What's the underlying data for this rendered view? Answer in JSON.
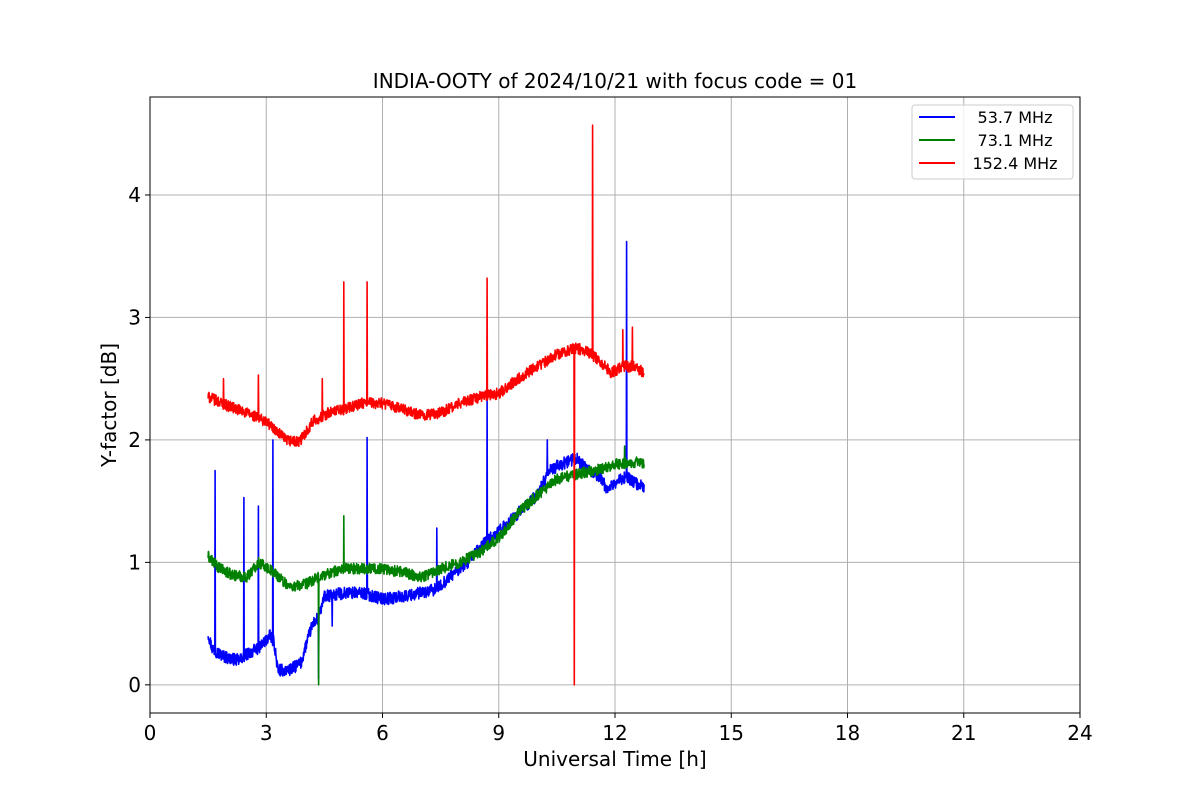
{
  "chart_data": {
    "type": "line",
    "title": "INDIA-OOTY of 2024/10/21 with focus code = 01",
    "xlabel": "Universal Time [h]",
    "ylabel": "Y-factor [dB]",
    "xlim": [
      0,
      24
    ],
    "ylim": [
      -0.23,
      4.8
    ],
    "xticks": [
      0,
      3,
      6,
      9,
      12,
      15,
      18,
      21,
      24
    ],
    "yticks": [
      0,
      1,
      2,
      3,
      4
    ],
    "grid": true,
    "legend_position": "top-right",
    "series": [
      {
        "name": "53.7 MHz",
        "color": "#0000ff",
        "noise": 0.05,
        "x": [
          1.5,
          1.6,
          1.8,
          2.0,
          2.3,
          2.5,
          2.8,
          3.1,
          3.2,
          3.3,
          3.6,
          3.9,
          4.0,
          4.2,
          4.35,
          4.5,
          5.0,
          5.5,
          6.0,
          6.5,
          7.0,
          7.4,
          7.8,
          8.2,
          8.6,
          9.0,
          9.5,
          10.0,
          10.3,
          10.6,
          11.0,
          11.3,
          11.6,
          11.8,
          12.0,
          12.3,
          12.5,
          12.75
        ],
        "y": [
          0.42,
          0.3,
          0.25,
          0.22,
          0.2,
          0.25,
          0.3,
          0.4,
          0.35,
          0.12,
          0.12,
          0.18,
          0.3,
          0.5,
          0.55,
          0.72,
          0.75,
          0.75,
          0.7,
          0.72,
          0.75,
          0.78,
          0.9,
          1.0,
          1.15,
          1.25,
          1.4,
          1.55,
          1.75,
          1.8,
          1.85,
          1.75,
          1.7,
          1.6,
          1.65,
          1.7,
          1.65,
          1.62
        ],
        "spikes": [
          [
            1.68,
            1.75
          ],
          [
            2.42,
            1.53
          ],
          [
            2.8,
            1.46
          ],
          [
            3.17,
            2.0
          ],
          [
            4.35,
            0.05
          ],
          [
            4.7,
            0.48
          ],
          [
            5.6,
            2.02
          ],
          [
            7.4,
            1.28
          ],
          [
            8.7,
            2.35
          ],
          [
            10.25,
            2.0
          ],
          [
            12.3,
            3.62
          ]
        ]
      },
      {
        "name": "73.1 MHz",
        "color": "#008000",
        "noise": 0.045,
        "x": [
          1.5,
          1.8,
          2.1,
          2.5,
          2.8,
          3.2,
          3.6,
          4.0,
          4.5,
          5.0,
          5.5,
          6.0,
          6.5,
          7.0,
          7.5,
          8.0,
          8.5,
          9.0,
          9.5,
          10.0,
          10.5,
          11.0,
          11.5,
          12.0,
          12.5,
          12.75
        ],
        "y": [
          1.05,
          0.95,
          0.9,
          0.88,
          1.0,
          0.92,
          0.8,
          0.82,
          0.9,
          0.95,
          0.95,
          0.95,
          0.92,
          0.88,
          0.95,
          1.0,
          1.08,
          1.2,
          1.4,
          1.55,
          1.68,
          1.72,
          1.75,
          1.8,
          1.82,
          1.8
        ],
        "spikes": [
          [
            4.35,
            0.0
          ],
          [
            5.0,
            1.38
          ],
          [
            12.25,
            1.95
          ]
        ]
      },
      {
        "name": "152.4 MHz",
        "color": "#ff0000",
        "noise": 0.045,
        "x": [
          1.5,
          2.0,
          2.5,
          3.0,
          3.5,
          3.85,
          4.2,
          4.6,
          5.0,
          5.5,
          6.0,
          6.5,
          7.0,
          7.5,
          8.0,
          8.5,
          9.0,
          9.5,
          10.0,
          10.5,
          11.0,
          11.3,
          11.6,
          11.9,
          12.2,
          12.5,
          12.75
        ],
        "y": [
          2.35,
          2.28,
          2.22,
          2.15,
          2.0,
          1.98,
          2.15,
          2.22,
          2.25,
          2.3,
          2.3,
          2.25,
          2.2,
          2.22,
          2.3,
          2.35,
          2.38,
          2.5,
          2.6,
          2.7,
          2.75,
          2.72,
          2.65,
          2.55,
          2.6,
          2.6,
          2.55
        ],
        "spikes": [
          [
            1.9,
            2.5
          ],
          [
            2.8,
            2.53
          ],
          [
            4.45,
            2.5
          ],
          [
            5.0,
            3.29
          ],
          [
            5.6,
            3.29
          ],
          [
            8.7,
            3.32
          ],
          [
            10.95,
            0.0
          ],
          [
            11.42,
            4.57
          ],
          [
            12.2,
            2.9
          ],
          [
            12.45,
            2.92
          ]
        ]
      }
    ]
  }
}
